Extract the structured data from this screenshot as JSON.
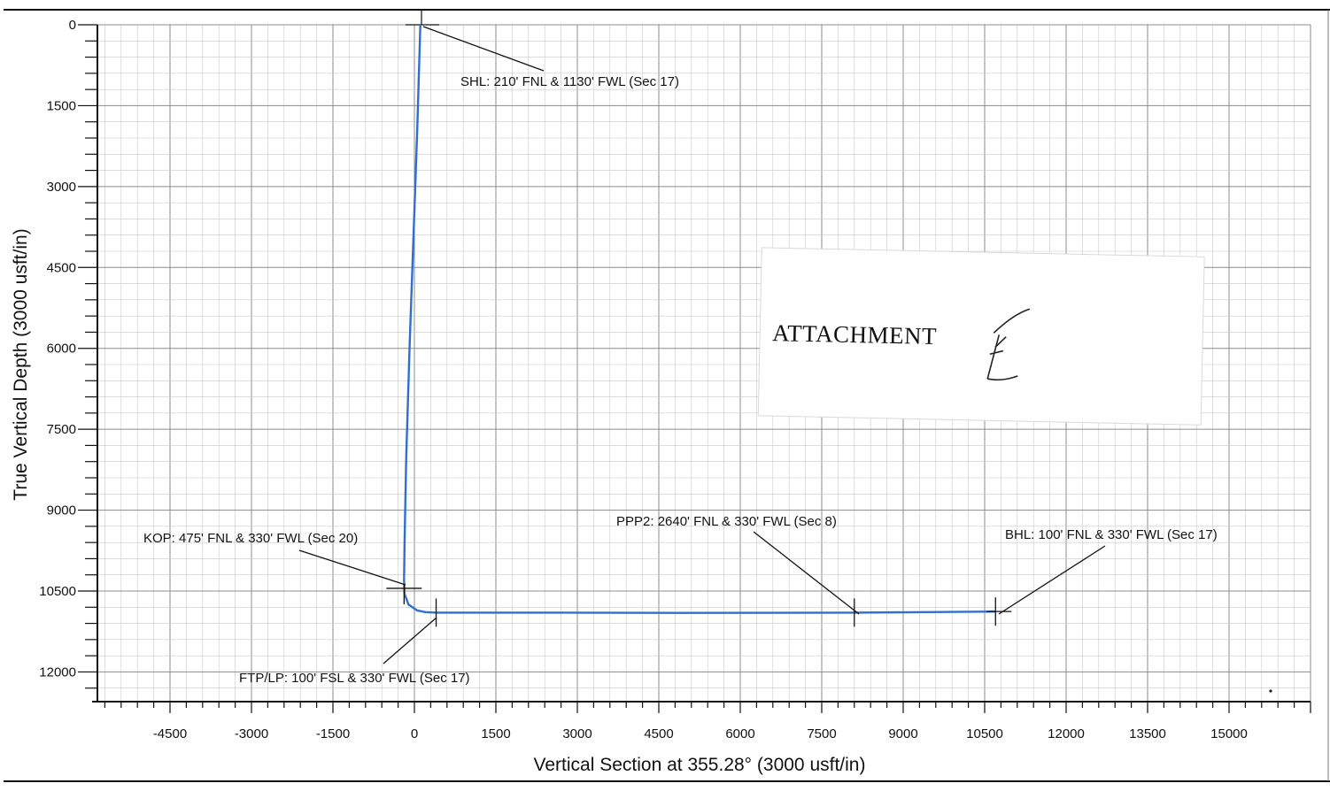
{
  "chart_data": {
    "type": "line",
    "xlabel": "Vertical Section at 355.28° (3000 usft/in)",
    "ylabel": "True Vertical Depth (3000 usft/in)",
    "xlim": [
      -5800,
      16500
    ],
    "ylim": [
      12600,
      0
    ],
    "x_ticks": [
      -4500,
      -3000,
      -1500,
      0,
      1500,
      3000,
      4500,
      6000,
      7500,
      9000,
      10500,
      12000,
      13500,
      15000
    ],
    "y_ticks": [
      0,
      1500,
      3000,
      4500,
      6000,
      7500,
      9000,
      10500,
      12000
    ],
    "grid": true,
    "series": [
      {
        "color": "#2f6fd0",
        "points": [
          [
            110,
            0
          ],
          [
            50,
            2000
          ],
          [
            -20,
            4000
          ],
          [
            -90,
            6000
          ],
          [
            -150,
            8000
          ],
          [
            -180,
            9500
          ],
          [
            -190,
            10300
          ],
          [
            -180,
            10560
          ],
          [
            -110,
            10750
          ],
          [
            50,
            10860
          ],
          [
            200,
            10890
          ],
          [
            400,
            10900
          ],
          [
            2000,
            10900
          ],
          [
            5000,
            10905
          ],
          [
            8100,
            10900
          ],
          [
            10700,
            10880
          ]
        ]
      }
    ],
    "annotations": [
      {
        "label": "SHL: 210' FNL & 1130' FWL (Sec 17)",
        "x": 110,
        "y": 0
      },
      {
        "label": "KOP: 475' FNL & 330' FWL  (Sec 20)",
        "x": -190,
        "y": 10450
      },
      {
        "label": "FTP/LP: 100' FSL & 330' FWL  (Sec 17)",
        "x": 400,
        "y": 10900
      },
      {
        "label": "PPP2:  2640' FNL & 330' FWL (Sec 8)",
        "x": 8100,
        "y": 10900
      },
      {
        "label": "BHL: 100' FNL & 330' FWL   (Sec 17)",
        "x": 10700,
        "y": 10880
      }
    ]
  },
  "stamp": {
    "text": "ATTACHMENT",
    "mark": "E"
  }
}
